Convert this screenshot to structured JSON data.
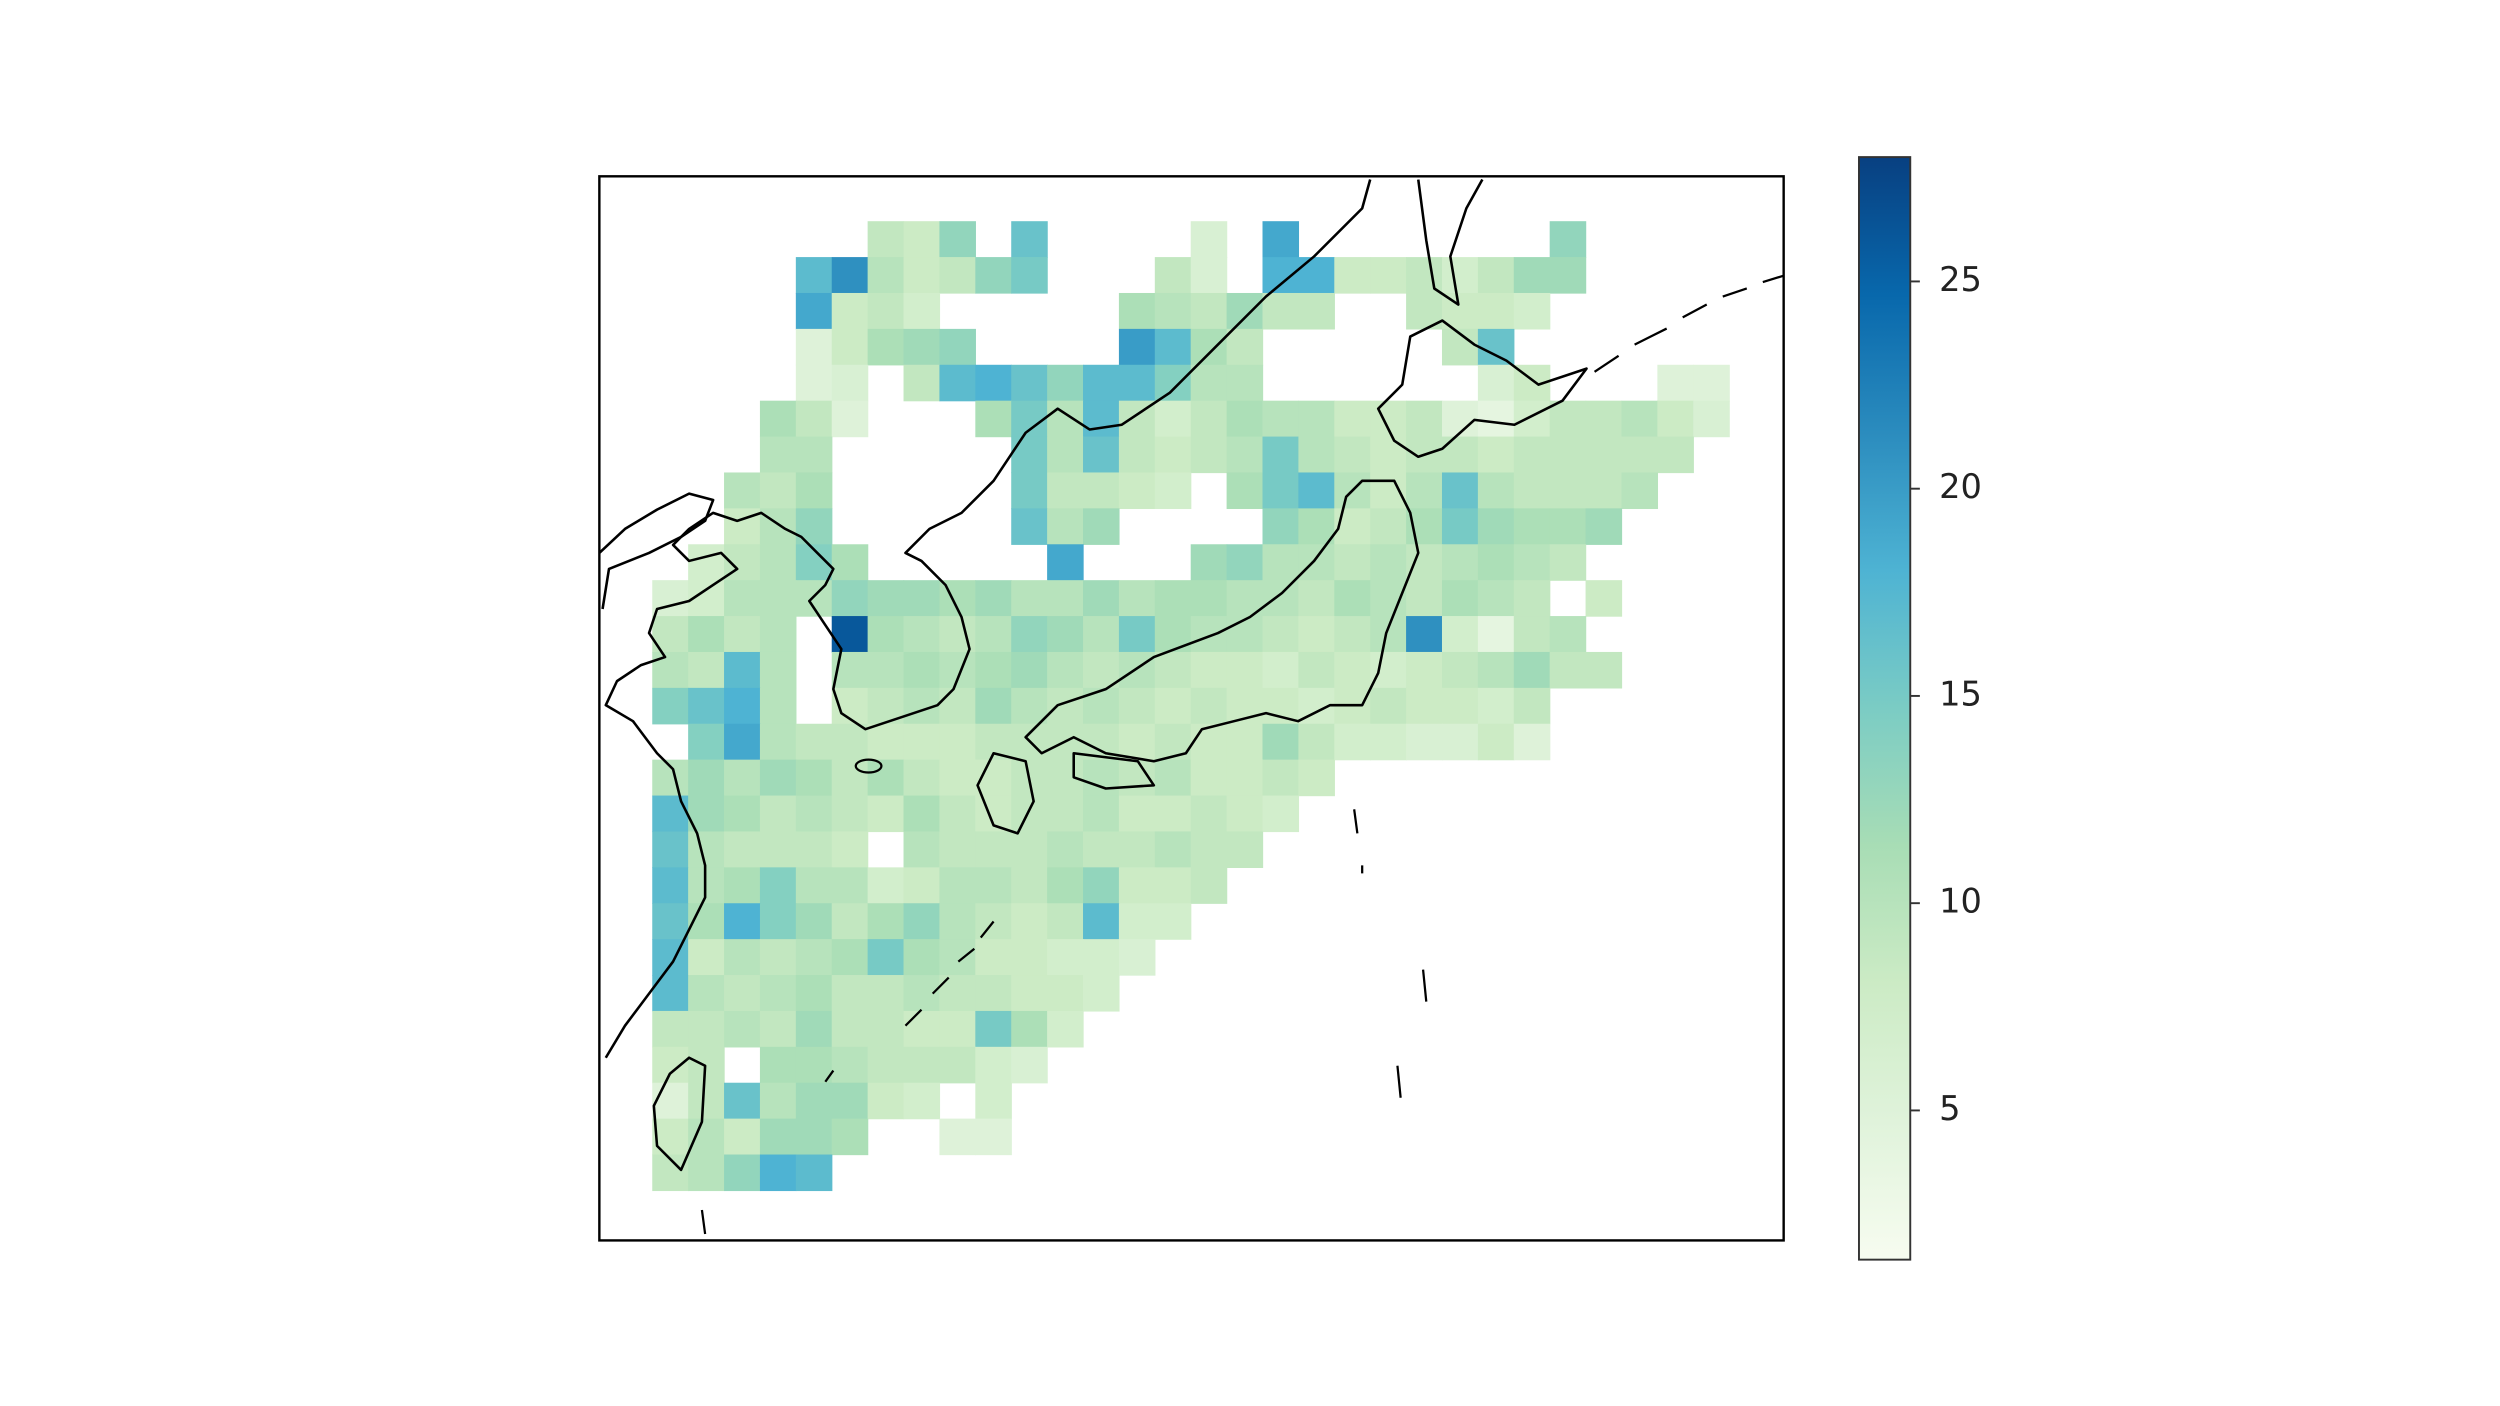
{
  "chart_data": {
    "type": "heatmap",
    "values": [
      [
        null,
        null,
        null,
        null,
        null,
        null,
        null,
        9,
        8,
        13,
        null,
        16,
        null,
        null,
        null,
        null,
        6,
        null,
        19,
        null,
        null,
        null,
        null,
        null,
        null,
        null,
        13,
        null,
        null,
        null,
        null,
        null
      ],
      [
        null,
        null,
        null,
        null,
        null,
        17,
        21,
        10,
        8,
        9,
        13,
        15,
        null,
        null,
        null,
        9,
        6,
        null,
        18,
        18,
        8,
        8,
        9,
        7,
        9,
        12,
        12,
        null,
        null,
        null,
        null,
        null
      ],
      [
        null,
        null,
        null,
        null,
        null,
        19,
        8,
        9,
        7,
        null,
        null,
        null,
        null,
        null,
        11,
        10,
        9,
        12,
        9,
        9,
        null,
        null,
        9,
        8,
        8,
        7,
        null,
        null,
        null,
        null,
        null,
        null
      ],
      [
        null,
        null,
        null,
        null,
        null,
        5,
        8,
        11,
        12,
        13,
        null,
        null,
        null,
        null,
        20,
        17,
        11,
        9,
        null,
        null,
        null,
        null,
        null,
        9,
        16,
        null,
        null,
        null,
        null,
        null,
        null,
        null
      ],
      [
        null,
        null,
        null,
        null,
        null,
        5,
        6,
        null,
        9,
        17,
        18,
        16,
        13,
        17,
        17,
        14,
        10,
        10,
        null,
        null,
        null,
        null,
        null,
        null,
        6,
        8,
        null,
        null,
        null,
        5,
        5,
        null
      ],
      [
        null,
        null,
        null,
        null,
        11,
        9,
        5,
        null,
        null,
        null,
        11,
        15,
        10,
        17,
        9,
        7,
        9,
        11,
        10,
        10,
        8,
        8,
        9,
        5,
        4,
        7,
        9,
        9,
        10,
        8,
        6,
        null
      ],
      [
        null,
        null,
        null,
        null,
        10,
        10,
        null,
        null,
        null,
        null,
        null,
        15,
        10,
        16,
        9,
        8,
        9,
        10,
        15,
        10,
        9,
        8,
        9,
        9,
        8,
        9,
        9,
        9,
        9,
        9,
        null,
        null
      ],
      [
        null,
        null,
        null,
        10,
        9,
        11,
        null,
        null,
        null,
        null,
        null,
        15,
        9,
        9,
        8,
        7,
        null,
        11,
        15,
        17,
        10,
        8,
        10,
        16,
        10,
        9,
        9,
        9,
        10,
        null,
        null,
        null
      ],
      [
        null,
        null,
        null,
        8,
        10,
        13,
        null,
        null,
        null,
        null,
        null,
        16,
        10,
        12,
        null,
        null,
        null,
        null,
        13,
        11,
        8,
        9,
        11,
        15,
        12,
        11,
        11,
        12,
        null,
        null,
        null,
        null
      ],
      [
        null,
        null,
        7,
        9,
        10,
        14,
        11,
        null,
        null,
        null,
        null,
        null,
        19,
        null,
        null,
        null,
        12,
        13,
        10,
        10,
        9,
        10,
        9,
        10,
        11,
        10,
        9,
        null,
        null,
        null,
        null,
        null
      ],
      [
        null,
        6,
        7,
        10,
        10,
        10,
        13,
        12,
        12,
        11,
        12,
        10,
        10,
        12,
        10,
        11,
        11,
        10,
        10,
        9,
        11,
        10,
        9,
        11,
        10,
        9,
        null,
        8,
        null,
        null,
        null,
        null
      ],
      [
        null,
        9,
        11,
        9,
        10,
        null,
        26,
        11,
        10,
        9,
        10,
        13,
        12,
        10,
        15,
        11,
        10,
        10,
        9,
        8,
        9,
        10,
        21,
        7,
        4,
        9,
        10,
        null,
        null,
        null,
        null,
        null
      ],
      [
        null,
        10,
        9,
        17,
        10,
        null,
        10,
        10,
        11,
        10,
        11,
        12,
        10,
        9,
        10,
        9,
        8,
        8,
        7,
        9,
        8,
        7,
        8,
        9,
        10,
        12,
        9,
        9,
        null,
        null,
        null,
        null
      ],
      [
        null,
        14,
        16,
        18,
        10,
        null,
        8,
        9,
        10,
        9,
        12,
        10,
        9,
        10,
        9,
        8,
        9,
        8,
        8,
        7,
        8,
        9,
        8,
        8,
        7,
        9,
        null,
        null,
        null,
        null,
        null,
        null
      ],
      [
        null,
        null,
        14,
        19,
        10,
        9,
        9,
        8,
        8,
        8,
        9,
        9,
        9,
        9,
        8,
        9,
        8,
        8,
        12,
        9,
        7,
        7,
        6,
        6,
        8,
        5,
        null,
        null,
        null,
        null,
        null,
        null
      ],
      [
        null,
        10,
        12,
        10,
        12,
        11,
        9,
        11,
        9,
        8,
        8,
        9,
        9,
        10,
        9,
        10,
        8,
        8,
        9,
        8,
        null,
        null,
        null,
        null,
        null,
        null,
        null,
        null,
        null,
        null,
        null,
        null
      ],
      [
        null,
        17,
        12,
        11,
        9,
        10,
        9,
        8,
        11,
        9,
        8,
        9,
        9,
        10,
        8,
        8,
        9,
        8,
        7,
        null,
        null,
        null,
        null,
        null,
        null,
        null,
        null,
        null,
        null,
        null,
        null,
        null
      ],
      [
        null,
        16,
        10,
        9,
        9,
        9,
        8,
        null,
        10,
        9,
        9,
        9,
        10,
        9,
        9,
        10,
        9,
        9,
        null,
        null,
        null,
        null,
        null,
        null,
        null,
        null,
        null,
        null,
        null,
        null,
        null,
        null
      ],
      [
        null,
        17,
        10,
        11,
        14,
        10,
        10,
        7,
        8,
        10,
        10,
        9,
        11,
        13,
        8,
        8,
        9,
        null,
        null,
        null,
        null,
        null,
        null,
        null,
        null,
        null,
        null,
        null,
        null,
        null,
        null,
        null
      ],
      [
        null,
        16,
        11,
        18,
        14,
        12,
        9,
        11,
        13,
        10,
        9,
        8,
        9,
        17,
        7,
        7,
        null,
        null,
        null,
        null,
        null,
        null,
        null,
        null,
        null,
        null,
        null,
        null,
        null,
        null,
        null,
        null
      ],
      [
        null,
        17,
        8,
        10,
        9,
        10,
        11,
        15,
        11,
        10,
        8,
        8,
        7,
        7,
        6,
        null,
        null,
        null,
        null,
        null,
        null,
        null,
        null,
        null,
        null,
        null,
        null,
        null,
        null,
        null,
        null,
        null
      ],
      [
        null,
        17,
        10,
        9,
        10,
        11,
        9,
        9,
        10,
        9,
        9,
        8,
        8,
        7,
        null,
        null,
        null,
        null,
        null,
        null,
        null,
        null,
        null,
        null,
        null,
        null,
        null,
        null,
        null,
        null,
        null,
        null
      ],
      [
        null,
        9,
        9,
        10,
        9,
        12,
        9,
        9,
        8,
        8,
        15,
        11,
        7,
        null,
        null,
        null,
        null,
        null,
        null,
        null,
        null,
        null,
        null,
        null,
        null,
        null,
        null,
        null,
        null,
        null,
        null,
        null
      ],
      [
        null,
        8,
        9,
        null,
        11,
        11,
        10,
        9,
        9,
        9,
        7,
        6,
        null,
        null,
        null,
        null,
        null,
        null,
        null,
        null,
        null,
        null,
        null,
        null,
        null,
        null,
        null,
        null,
        null,
        null,
        null,
        null
      ],
      [
        null,
        5,
        9,
        16,
        10,
        12,
        12,
        8,
        7,
        null,
        7,
        null,
        null,
        null,
        null,
        null,
        null,
        null,
        null,
        null,
        null,
        null,
        null,
        null,
        null,
        null,
        null,
        null,
        null,
        null,
        null,
        null
      ],
      [
        null,
        8,
        10,
        8,
        12,
        12,
        11,
        null,
        null,
        5,
        5,
        null,
        null,
        null,
        null,
        null,
        null,
        null,
        null,
        null,
        null,
        null,
        null,
        null,
        null,
        null,
        null,
        null,
        null,
        null,
        null,
        null
      ],
      [
        null,
        9,
        10,
        13,
        18,
        17,
        null,
        null,
        null,
        null,
        null,
        null,
        null,
        null,
        null,
        null,
        null,
        null,
        null,
        null,
        null,
        null,
        null,
        null,
        null,
        null,
        null,
        null,
        null,
        null,
        null,
        null
      ]
    ],
    "colormap": [
      "#f7fcf0",
      "#e0f3db",
      "#ccebc5",
      "#a8ddb5",
      "#7bccc4",
      "#4eb3d3",
      "#2b8cbe",
      "#0868ac",
      "#084081"
    ],
    "clim": [
      1.4,
      28
    ],
    "cticks": [
      5,
      10,
      15,
      20,
      25
    ]
  }
}
